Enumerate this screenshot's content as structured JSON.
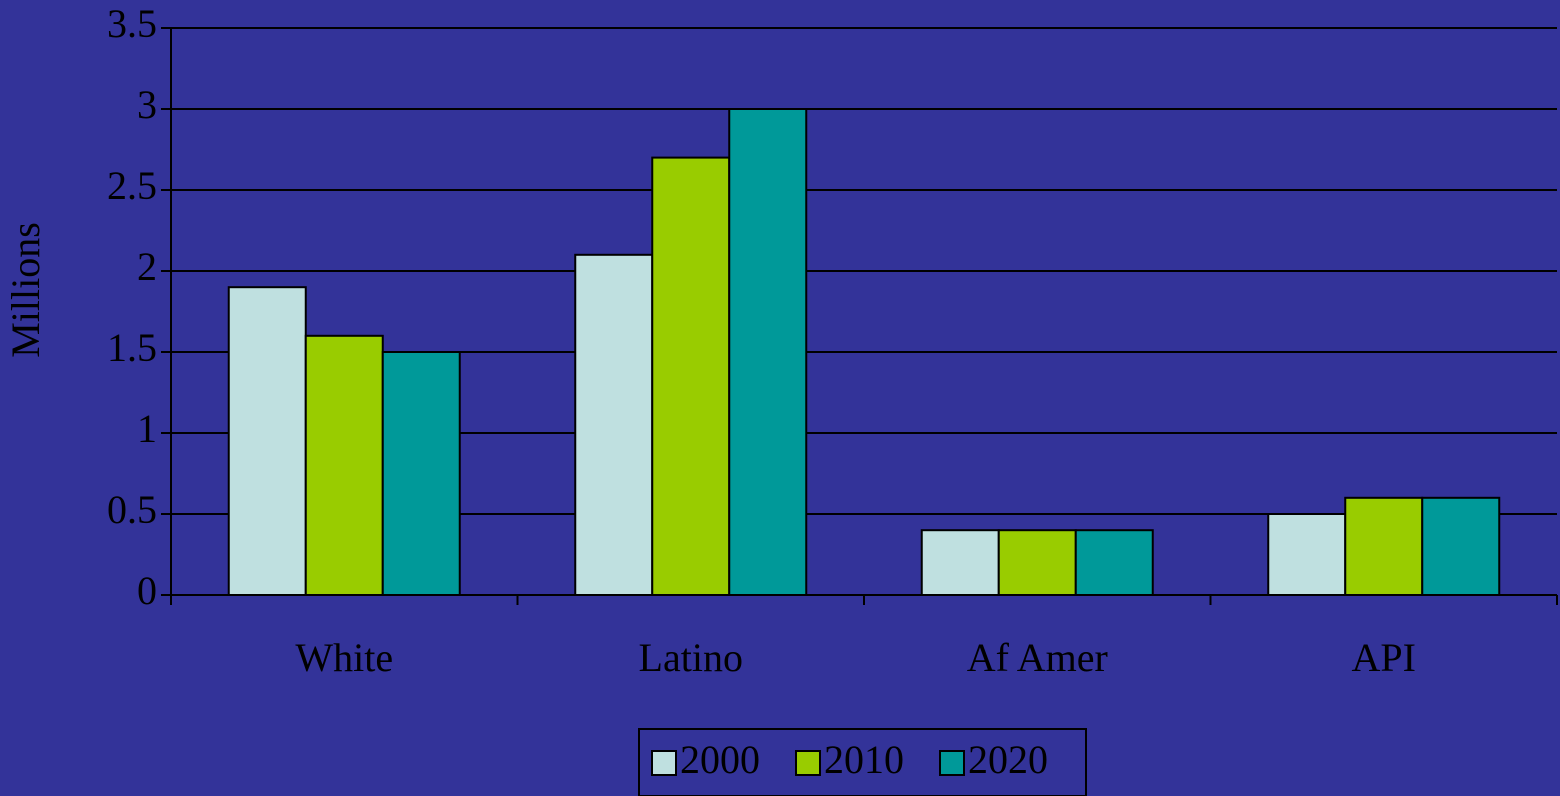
{
  "chart_data": {
    "type": "bar",
    "y_label": "Millions",
    "categories": [
      "White",
      "Latino",
      "Af Amer",
      "API"
    ],
    "series": [
      {
        "name": "2000",
        "color": "#bfe0e0",
        "values": [
          1.9,
          2.1,
          0.4,
          0.5
        ]
      },
      {
        "name": "2010",
        "color": "#99cc00",
        "values": [
          1.6,
          2.7,
          0.4,
          0.6
        ]
      },
      {
        "name": "2020",
        "color": "#009999",
        "values": [
          1.5,
          3.0,
          0.4,
          0.6
        ]
      }
    ],
    "ylim": [
      0,
      3.5
    ],
    "yticks": [
      0,
      0.5,
      1,
      1.5,
      2,
      2.5,
      3,
      3.5
    ],
    "grid": true,
    "legend": "bottom"
  }
}
